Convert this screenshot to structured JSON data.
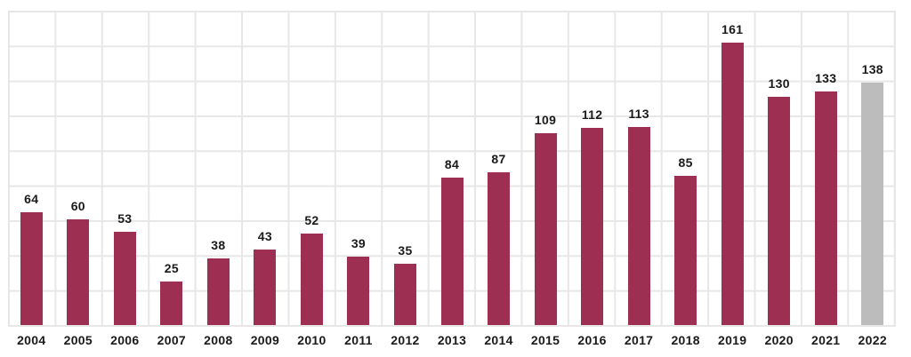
{
  "chart_data": {
    "type": "bar",
    "categories": [
      "2004",
      "2005",
      "2006",
      "2007",
      "2008",
      "2009",
      "2010",
      "2011",
      "2012",
      "2013",
      "2014",
      "2015",
      "2016",
      "2017",
      "2018",
      "2019",
      "2020",
      "2021",
      "2022"
    ],
    "values": [
      64,
      60,
      53,
      25,
      38,
      43,
      52,
      39,
      35,
      84,
      87,
      109,
      112,
      113,
      85,
      161,
      130,
      133,
      138
    ],
    "title": "",
    "xlabel": "",
    "ylabel": "",
    "ylim": [
      0,
      180
    ],
    "y_gridline_step": 20,
    "grid": true,
    "legend_position": "none",
    "value_labels_shown": true,
    "y_tick_labels_shown": false,
    "bar_color": "#9C2F52",
    "highlight_color": "#BCBCBC",
    "highlight_index": 18,
    "grid_color": "#E7E7E7",
    "label_color": "#1A1A1A",
    "background_color": "#FFFFFF"
  }
}
